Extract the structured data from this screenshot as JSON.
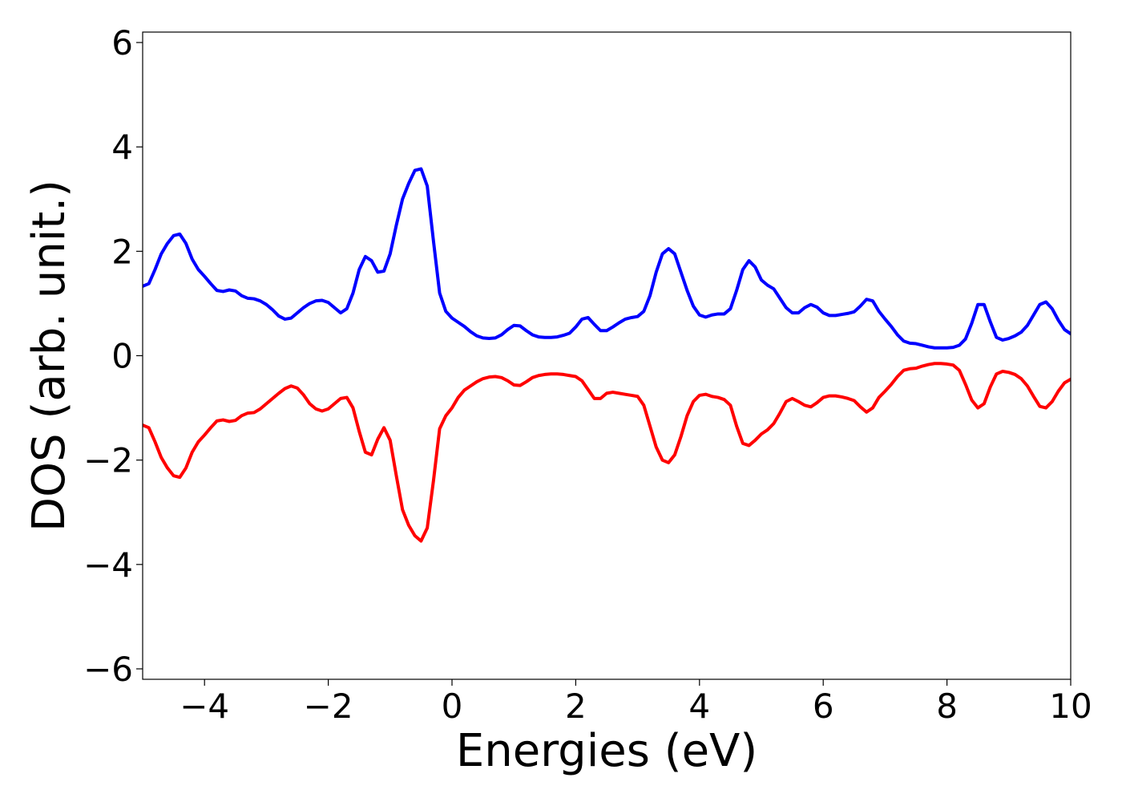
{
  "chart_data": {
    "type": "line",
    "title": "",
    "xlabel": "Energies (eV)",
    "ylabel": "DOS (arb. unit.)",
    "xlim": [
      -5,
      10
    ],
    "ylim": [
      -6.2,
      6.2
    ],
    "xticks": [
      -4,
      -2,
      0,
      2,
      4,
      6,
      8,
      10
    ],
    "xtick_labels": [
      "−4",
      "−2",
      "0",
      "2",
      "4",
      "6",
      "8",
      "10"
    ],
    "yticks": [
      -6,
      -4,
      -2,
      0,
      2,
      4,
      6
    ],
    "ytick_labels": [
      "−6",
      "−4",
      "−2",
      "0",
      "2",
      "4",
      "6"
    ],
    "grid": false,
    "legend": "none",
    "series": [
      {
        "color": "#0000ff",
        "points": [
          [
            -5.0,
            1.33
          ],
          [
            -4.9,
            1.38
          ],
          [
            -4.8,
            1.65
          ],
          [
            -4.7,
            1.95
          ],
          [
            -4.6,
            2.15
          ],
          [
            -4.5,
            2.3
          ],
          [
            -4.4,
            2.33
          ],
          [
            -4.3,
            2.15
          ],
          [
            -4.2,
            1.85
          ],
          [
            -4.1,
            1.65
          ],
          [
            -4.0,
            1.52
          ],
          [
            -3.9,
            1.38
          ],
          [
            -3.8,
            1.25
          ],
          [
            -3.7,
            1.23
          ],
          [
            -3.6,
            1.26
          ],
          [
            -3.5,
            1.24
          ],
          [
            -3.4,
            1.15
          ],
          [
            -3.3,
            1.1
          ],
          [
            -3.2,
            1.09
          ],
          [
            -3.1,
            1.05
          ],
          [
            -3.0,
            0.98
          ],
          [
            -2.9,
            0.88
          ],
          [
            -2.8,
            0.76
          ],
          [
            -2.7,
            0.7
          ],
          [
            -2.6,
            0.72
          ],
          [
            -2.5,
            0.82
          ],
          [
            -2.4,
            0.92
          ],
          [
            -2.3,
            1.0
          ],
          [
            -2.2,
            1.05
          ],
          [
            -2.1,
            1.06
          ],
          [
            -2.0,
            1.02
          ],
          [
            -1.9,
            0.92
          ],
          [
            -1.8,
            0.82
          ],
          [
            -1.7,
            0.9
          ],
          [
            -1.6,
            1.2
          ],
          [
            -1.5,
            1.65
          ],
          [
            -1.4,
            1.9
          ],
          [
            -1.3,
            1.82
          ],
          [
            -1.2,
            1.6
          ],
          [
            -1.1,
            1.62
          ],
          [
            -1.0,
            1.95
          ],
          [
            -0.9,
            2.5
          ],
          [
            -0.8,
            3.0
          ],
          [
            -0.7,
            3.3
          ],
          [
            -0.6,
            3.55
          ],
          [
            -0.5,
            3.58
          ],
          [
            -0.4,
            3.25
          ],
          [
            -0.3,
            2.2
          ],
          [
            -0.2,
            1.2
          ],
          [
            -0.1,
            0.85
          ],
          [
            0.0,
            0.72
          ],
          [
            0.1,
            0.64
          ],
          [
            0.2,
            0.56
          ],
          [
            0.3,
            0.46
          ],
          [
            0.4,
            0.38
          ],
          [
            0.5,
            0.34
          ],
          [
            0.6,
            0.33
          ],
          [
            0.7,
            0.34
          ],
          [
            0.8,
            0.4
          ],
          [
            0.9,
            0.5
          ],
          [
            1.0,
            0.58
          ],
          [
            1.1,
            0.57
          ],
          [
            1.2,
            0.48
          ],
          [
            1.3,
            0.4
          ],
          [
            1.4,
            0.36
          ],
          [
            1.5,
            0.35
          ],
          [
            1.6,
            0.35
          ],
          [
            1.7,
            0.36
          ],
          [
            1.8,
            0.39
          ],
          [
            1.9,
            0.43
          ],
          [
            2.0,
            0.55
          ],
          [
            2.1,
            0.7
          ],
          [
            2.2,
            0.73
          ],
          [
            2.3,
            0.6
          ],
          [
            2.4,
            0.48
          ],
          [
            2.5,
            0.48
          ],
          [
            2.6,
            0.55
          ],
          [
            2.7,
            0.63
          ],
          [
            2.8,
            0.7
          ],
          [
            2.9,
            0.73
          ],
          [
            3.0,
            0.75
          ],
          [
            3.1,
            0.85
          ],
          [
            3.2,
            1.15
          ],
          [
            3.3,
            1.6
          ],
          [
            3.4,
            1.95
          ],
          [
            3.5,
            2.05
          ],
          [
            3.6,
            1.95
          ],
          [
            3.7,
            1.6
          ],
          [
            3.8,
            1.25
          ],
          [
            3.9,
            0.95
          ],
          [
            4.0,
            0.78
          ],
          [
            4.1,
            0.74
          ],
          [
            4.2,
            0.78
          ],
          [
            4.3,
            0.8
          ],
          [
            4.4,
            0.8
          ],
          [
            4.5,
            0.9
          ],
          [
            4.6,
            1.25
          ],
          [
            4.7,
            1.65
          ],
          [
            4.8,
            1.82
          ],
          [
            4.9,
            1.7
          ],
          [
            5.0,
            1.45
          ],
          [
            5.1,
            1.35
          ],
          [
            5.2,
            1.28
          ],
          [
            5.3,
            1.1
          ],
          [
            5.4,
            0.92
          ],
          [
            5.5,
            0.82
          ],
          [
            5.6,
            0.82
          ],
          [
            5.7,
            0.92
          ],
          [
            5.8,
            0.98
          ],
          [
            5.9,
            0.93
          ],
          [
            6.0,
            0.82
          ],
          [
            6.1,
            0.77
          ],
          [
            6.2,
            0.77
          ],
          [
            6.3,
            0.79
          ],
          [
            6.4,
            0.81
          ],
          [
            6.5,
            0.84
          ],
          [
            6.6,
            0.95
          ],
          [
            6.7,
            1.08
          ],
          [
            6.8,
            1.05
          ],
          [
            6.9,
            0.85
          ],
          [
            7.0,
            0.7
          ],
          [
            7.1,
            0.56
          ],
          [
            7.2,
            0.4
          ],
          [
            7.3,
            0.28
          ],
          [
            7.4,
            0.24
          ],
          [
            7.5,
            0.23
          ],
          [
            7.6,
            0.2
          ],
          [
            7.7,
            0.17
          ],
          [
            7.8,
            0.15
          ],
          [
            7.9,
            0.15
          ],
          [
            8.0,
            0.15
          ],
          [
            8.1,
            0.16
          ],
          [
            8.2,
            0.2
          ],
          [
            8.3,
            0.32
          ],
          [
            8.4,
            0.62
          ],
          [
            8.5,
            0.98
          ],
          [
            8.6,
            0.98
          ],
          [
            8.7,
            0.65
          ],
          [
            8.8,
            0.35
          ],
          [
            8.9,
            0.3
          ],
          [
            9.0,
            0.33
          ],
          [
            9.1,
            0.38
          ],
          [
            9.2,
            0.45
          ],
          [
            9.3,
            0.58
          ],
          [
            9.4,
            0.78
          ],
          [
            9.5,
            0.98
          ],
          [
            9.6,
            1.03
          ],
          [
            9.7,
            0.9
          ],
          [
            9.8,
            0.68
          ],
          [
            9.9,
            0.5
          ],
          [
            10.0,
            0.42
          ]
        ]
      },
      {
        "color": "#ff0000",
        "points": [
          [
            -5.0,
            -1.33
          ],
          [
            -4.9,
            -1.38
          ],
          [
            -4.8,
            -1.65
          ],
          [
            -4.7,
            -1.95
          ],
          [
            -4.6,
            -2.15
          ],
          [
            -4.5,
            -2.3
          ],
          [
            -4.4,
            -2.33
          ],
          [
            -4.3,
            -2.15
          ],
          [
            -4.2,
            -1.85
          ],
          [
            -4.1,
            -1.65
          ],
          [
            -4.0,
            -1.52
          ],
          [
            -3.9,
            -1.38
          ],
          [
            -3.8,
            -1.25
          ],
          [
            -3.7,
            -1.23
          ],
          [
            -3.6,
            -1.26
          ],
          [
            -3.5,
            -1.24
          ],
          [
            -3.4,
            -1.15
          ],
          [
            -3.3,
            -1.1
          ],
          [
            -3.2,
            -1.09
          ],
          [
            -3.1,
            -1.02
          ],
          [
            -3.0,
            -0.92
          ],
          [
            -2.9,
            -0.82
          ],
          [
            -2.8,
            -0.72
          ],
          [
            -2.7,
            -0.63
          ],
          [
            -2.6,
            -0.58
          ],
          [
            -2.5,
            -0.62
          ],
          [
            -2.4,
            -0.75
          ],
          [
            -2.3,
            -0.92
          ],
          [
            -2.2,
            -1.02
          ],
          [
            -2.1,
            -1.06
          ],
          [
            -2.0,
            -1.02
          ],
          [
            -1.9,
            -0.92
          ],
          [
            -1.8,
            -0.82
          ],
          [
            -1.7,
            -0.8
          ],
          [
            -1.6,
            -1.0
          ],
          [
            -1.5,
            -1.45
          ],
          [
            -1.4,
            -1.85
          ],
          [
            -1.3,
            -1.9
          ],
          [
            -1.2,
            -1.6
          ],
          [
            -1.1,
            -1.38
          ],
          [
            -1.0,
            -1.62
          ],
          [
            -0.9,
            -2.3
          ],
          [
            -0.8,
            -2.95
          ],
          [
            -0.7,
            -3.25
          ],
          [
            -0.6,
            -3.45
          ],
          [
            -0.5,
            -3.55
          ],
          [
            -0.4,
            -3.3
          ],
          [
            -0.3,
            -2.4
          ],
          [
            -0.2,
            -1.4
          ],
          [
            -0.1,
            -1.15
          ],
          [
            0.0,
            -1.0
          ],
          [
            0.1,
            -0.8
          ],
          [
            0.2,
            -0.66
          ],
          [
            0.3,
            -0.58
          ],
          [
            0.4,
            -0.5
          ],
          [
            0.5,
            -0.44
          ],
          [
            0.6,
            -0.41
          ],
          [
            0.7,
            -0.4
          ],
          [
            0.8,
            -0.42
          ],
          [
            0.9,
            -0.48
          ],
          [
            1.0,
            -0.56
          ],
          [
            1.1,
            -0.57
          ],
          [
            1.2,
            -0.5
          ],
          [
            1.3,
            -0.42
          ],
          [
            1.4,
            -0.38
          ],
          [
            1.5,
            -0.36
          ],
          [
            1.6,
            -0.35
          ],
          [
            1.7,
            -0.35
          ],
          [
            1.8,
            -0.36
          ],
          [
            1.9,
            -0.38
          ],
          [
            2.0,
            -0.4
          ],
          [
            2.1,
            -0.48
          ],
          [
            2.2,
            -0.65
          ],
          [
            2.3,
            -0.82
          ],
          [
            2.4,
            -0.82
          ],
          [
            2.5,
            -0.72
          ],
          [
            2.6,
            -0.7
          ],
          [
            2.7,
            -0.72
          ],
          [
            2.8,
            -0.74
          ],
          [
            2.9,
            -0.76
          ],
          [
            3.0,
            -0.78
          ],
          [
            3.1,
            -0.95
          ],
          [
            3.2,
            -1.35
          ],
          [
            3.3,
            -1.75
          ],
          [
            3.4,
            -2.0
          ],
          [
            3.5,
            -2.05
          ],
          [
            3.6,
            -1.9
          ],
          [
            3.7,
            -1.55
          ],
          [
            3.8,
            -1.15
          ],
          [
            3.9,
            -0.88
          ],
          [
            4.0,
            -0.76
          ],
          [
            4.1,
            -0.74
          ],
          [
            4.2,
            -0.78
          ],
          [
            4.3,
            -0.8
          ],
          [
            4.4,
            -0.84
          ],
          [
            4.5,
            -0.95
          ],
          [
            4.6,
            -1.35
          ],
          [
            4.7,
            -1.68
          ],
          [
            4.8,
            -1.72
          ],
          [
            4.9,
            -1.62
          ],
          [
            5.0,
            -1.5
          ],
          [
            5.1,
            -1.42
          ],
          [
            5.2,
            -1.3
          ],
          [
            5.3,
            -1.1
          ],
          [
            5.4,
            -0.88
          ],
          [
            5.5,
            -0.82
          ],
          [
            5.6,
            -0.88
          ],
          [
            5.7,
            -0.95
          ],
          [
            5.8,
            -0.98
          ],
          [
            5.9,
            -0.9
          ],
          [
            6.0,
            -0.8
          ],
          [
            6.1,
            -0.77
          ],
          [
            6.2,
            -0.77
          ],
          [
            6.3,
            -0.79
          ],
          [
            6.4,
            -0.82
          ],
          [
            6.5,
            -0.86
          ],
          [
            6.6,
            -0.98
          ],
          [
            6.7,
            -1.08
          ],
          [
            6.8,
            -1.0
          ],
          [
            6.9,
            -0.8
          ],
          [
            7.0,
            -0.68
          ],
          [
            7.1,
            -0.55
          ],
          [
            7.2,
            -0.4
          ],
          [
            7.3,
            -0.28
          ],
          [
            7.4,
            -0.25
          ],
          [
            7.5,
            -0.24
          ],
          [
            7.6,
            -0.2
          ],
          [
            7.7,
            -0.17
          ],
          [
            7.8,
            -0.15
          ],
          [
            7.9,
            -0.15
          ],
          [
            8.0,
            -0.16
          ],
          [
            8.1,
            -0.18
          ],
          [
            8.2,
            -0.28
          ],
          [
            8.3,
            -0.55
          ],
          [
            8.4,
            -0.85
          ],
          [
            8.5,
            -1.0
          ],
          [
            8.6,
            -0.92
          ],
          [
            8.7,
            -0.6
          ],
          [
            8.8,
            -0.35
          ],
          [
            8.9,
            -0.3
          ],
          [
            9.0,
            -0.32
          ],
          [
            9.1,
            -0.36
          ],
          [
            9.2,
            -0.44
          ],
          [
            9.3,
            -0.58
          ],
          [
            9.4,
            -0.78
          ],
          [
            9.5,
            -0.97
          ],
          [
            9.6,
            -1.0
          ],
          [
            9.7,
            -0.88
          ],
          [
            9.8,
            -0.68
          ],
          [
            9.9,
            -0.52
          ],
          [
            10.0,
            -0.45
          ]
        ]
      }
    ]
  }
}
